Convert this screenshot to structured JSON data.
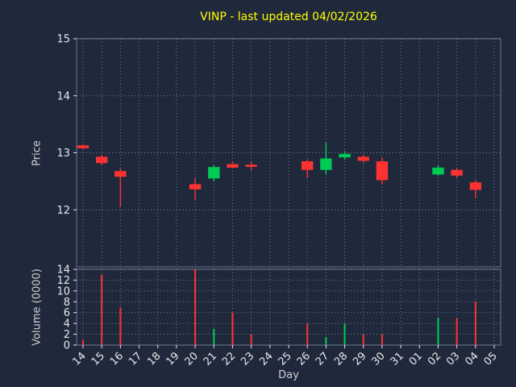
{
  "colors": {
    "background": "#20293c",
    "title": "#ffff00",
    "tick_label": "#e8e8e8",
    "axis_label": "#d0d0d0",
    "grid": "#93a0b8",
    "spine": "#aeb8cc",
    "up": "#00cc55",
    "down": "#ff3232"
  },
  "chart_data": {
    "type": "candlestick+volume",
    "title": "VINP - last updated 04/02/2026",
    "xlabel": "Day",
    "ylabel_price": "Price",
    "ylabel_volume": "Volume (0000)",
    "legend": "none",
    "grid": "dotted",
    "x_categories": [
      "14",
      "15",
      "16",
      "17",
      "18",
      "19",
      "20",
      "21",
      "22",
      "23",
      "24",
      "25",
      "26",
      "27",
      "28",
      "29",
      "30",
      "31",
      "01",
      "02",
      "03",
      "04",
      "05"
    ],
    "price_ylim": [
      11,
      15
    ],
    "price_ticks": [
      12,
      13,
      14,
      15
    ],
    "volume_ylim": [
      0,
      14
    ],
    "volume_ticks": [
      0,
      2,
      4,
      6,
      8,
      10,
      12,
      14
    ],
    "candles": [
      {
        "day": "14",
        "open": 13.13,
        "high": 13.15,
        "low": 13.06,
        "close": 13.08,
        "volume": 1.0
      },
      {
        "day": "15",
        "open": 12.93,
        "high": 12.97,
        "low": 12.78,
        "close": 12.82,
        "volume": 13.0
      },
      {
        "day": "16",
        "open": 12.68,
        "high": 12.72,
        "low": 12.05,
        "close": 12.58,
        "volume": 7.0
      },
      {
        "day": "20",
        "open": 12.45,
        "high": 12.56,
        "low": 12.18,
        "close": 12.36,
        "volume": 14.0
      },
      {
        "day": "21",
        "open": 12.55,
        "high": 12.78,
        "low": 12.5,
        "close": 12.75,
        "volume": 3.0
      },
      {
        "day": "22",
        "open": 12.8,
        "high": 12.85,
        "low": 12.72,
        "close": 12.74,
        "volume": 6.0
      },
      {
        "day": "23",
        "open": 12.79,
        "high": 12.84,
        "low": 12.7,
        "close": 12.77,
        "volume": 2.0
      },
      {
        "day": "26",
        "open": 12.85,
        "high": 12.88,
        "low": 12.56,
        "close": 12.7,
        "volume": 4.0
      },
      {
        "day": "27",
        "open": 12.7,
        "high": 13.18,
        "low": 12.62,
        "close": 12.9,
        "volume": 1.5
      },
      {
        "day": "28",
        "open": 12.92,
        "high": 13.03,
        "low": 12.88,
        "close": 12.98,
        "volume": 4.0
      },
      {
        "day": "29",
        "open": 12.93,
        "high": 12.97,
        "low": 12.82,
        "close": 12.86,
        "volume": 2.0
      },
      {
        "day": "30",
        "open": 12.85,
        "high": 12.92,
        "low": 12.45,
        "close": 12.52,
        "volume": 2.0
      },
      {
        "day": "02",
        "open": 12.62,
        "high": 12.78,
        "low": 12.6,
        "close": 12.74,
        "volume": 5.0
      },
      {
        "day": "03",
        "open": 12.7,
        "high": 12.74,
        "low": 12.55,
        "close": 12.6,
        "volume": 5.0
      },
      {
        "day": "04",
        "open": 12.48,
        "high": 12.52,
        "low": 12.2,
        "close": 12.35,
        "volume": 8.0
      }
    ]
  }
}
